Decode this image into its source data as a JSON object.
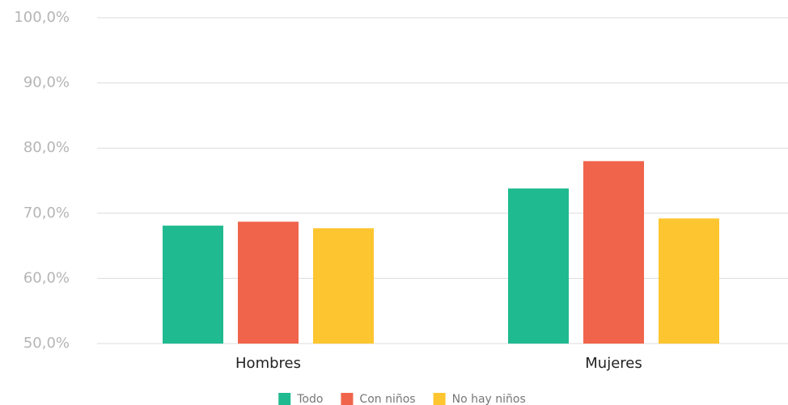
{
  "chart_data": {
    "type": "bar",
    "categories": [
      "Hombres",
      "Mujeres"
    ],
    "series": [
      {
        "name": "Todo",
        "color": "#1fba8f",
        "values": [
          68.1,
          73.8
        ]
      },
      {
        "name": "Con niños",
        "color": "#f0644c",
        "values": [
          68.7,
          78.0
        ]
      },
      {
        "name": "No hay niños",
        "color": "#fdc52f",
        "values": [
          67.7,
          69.2
        ]
      }
    ],
    "ylim": [
      50,
      100
    ],
    "yticks": [
      {
        "value": 50,
        "label": "50,0%"
      },
      {
        "value": 60,
        "label": "60,0%"
      },
      {
        "value": 70,
        "label": "70,0%"
      },
      {
        "value": 80,
        "label": "80,0%"
      },
      {
        "value": 90,
        "label": "90,0%"
      },
      {
        "value": 100,
        "label": "100,0%"
      }
    ],
    "grid": true,
    "legend": "bottom"
  }
}
